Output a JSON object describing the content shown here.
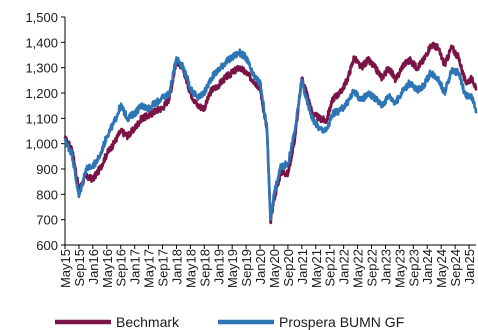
{
  "chart_data": {
    "type": "line",
    "title": "",
    "xlabel": "",
    "ylabel": "",
    "ylim": [
      600,
      1500
    ],
    "yticks": [
      "600",
      "700",
      "800",
      "900",
      "1,000",
      "1,100",
      "1,200",
      "1,300",
      "1,400",
      "1,500"
    ],
    "x_range": [
      "2015-05",
      "2025-03"
    ],
    "xticks": [
      "May15",
      "Sep15",
      "Jan16",
      "May16",
      "Sep16",
      "Jan17",
      "May17",
      "Sep17",
      "Jan18",
      "May18",
      "Sep18",
      "Jan19",
      "May19",
      "Sep19",
      "Jan20",
      "May20",
      "Sep20",
      "Jan21",
      "May21",
      "Sep21",
      "Jan22",
      "May22",
      "Sep22",
      "Jan23",
      "May23",
      "Sep23",
      "Jan24",
      "May24",
      "Sep24",
      "Jan25"
    ],
    "grid": false,
    "legend_position": "bottom",
    "series": [
      {
        "name": "Bechmark",
        "color": "#7b1446",
        "points": [
          [
            "2015-05",
            1020
          ],
          [
            "2015-07",
            980
          ],
          [
            "2015-09",
            820
          ],
          [
            "2015-11",
            870
          ],
          [
            "2016-01",
            860
          ],
          [
            "2016-03",
            900
          ],
          [
            "2016-05",
            960
          ],
          [
            "2016-07",
            1000
          ],
          [
            "2016-09",
            1050
          ],
          [
            "2016-11",
            1030
          ],
          [
            "2017-01",
            1060
          ],
          [
            "2017-03",
            1100
          ],
          [
            "2017-05",
            1110
          ],
          [
            "2017-07",
            1130
          ],
          [
            "2017-09",
            1140
          ],
          [
            "2017-11",
            1180
          ],
          [
            "2018-01",
            1330
          ],
          [
            "2018-03",
            1290
          ],
          [
            "2018-05",
            1200
          ],
          [
            "2018-07",
            1150
          ],
          [
            "2018-09",
            1140
          ],
          [
            "2018-11",
            1210
          ],
          [
            "2019-01",
            1230
          ],
          [
            "2019-03",
            1260
          ],
          [
            "2019-05",
            1280
          ],
          [
            "2019-07",
            1300
          ],
          [
            "2019-09",
            1280
          ],
          [
            "2019-11",
            1250
          ],
          [
            "2020-01",
            1220
          ],
          [
            "2020-03",
            1050
          ],
          [
            "2020-04",
            690
          ],
          [
            "2020-05",
            780
          ],
          [
            "2020-07",
            890
          ],
          [
            "2020-09",
            880
          ],
          [
            "2020-11",
            1020
          ],
          [
            "2021-01",
            1260
          ],
          [
            "2021-02",
            1220
          ],
          [
            "2021-04",
            1120
          ],
          [
            "2021-06",
            1100
          ],
          [
            "2021-08",
            1090
          ],
          [
            "2021-10",
            1180
          ],
          [
            "2021-12",
            1200
          ],
          [
            "2022-02",
            1250
          ],
          [
            "2022-04",
            1340
          ],
          [
            "2022-06",
            1300
          ],
          [
            "2022-08",
            1330
          ],
          [
            "2022-10",
            1300
          ],
          [
            "2022-12",
            1260
          ],
          [
            "2023-02",
            1300
          ],
          [
            "2023-04",
            1250
          ],
          [
            "2023-06",
            1310
          ],
          [
            "2023-08",
            1330
          ],
          [
            "2023-10",
            1300
          ],
          [
            "2023-12",
            1330
          ],
          [
            "2024-02",
            1390
          ],
          [
            "2024-04",
            1380
          ],
          [
            "2024-06",
            1310
          ],
          [
            "2024-08",
            1380
          ],
          [
            "2024-10",
            1340
          ],
          [
            "2024-12",
            1240
          ],
          [
            "2025-02",
            1260
          ],
          [
            "2025-03",
            1210
          ]
        ]
      },
      {
        "name": "Prospera BUMN GF",
        "color": "#2e75b6",
        "points": [
          [
            "2015-05",
            1010
          ],
          [
            "2015-07",
            960
          ],
          [
            "2015-09",
            790
          ],
          [
            "2015-11",
            900
          ],
          [
            "2016-01",
            910
          ],
          [
            "2016-03",
            950
          ],
          [
            "2016-05",
            1030
          ],
          [
            "2016-07",
            1080
          ],
          [
            "2016-09",
            1150
          ],
          [
            "2016-11",
            1100
          ],
          [
            "2017-01",
            1120
          ],
          [
            "2017-03",
            1150
          ],
          [
            "2017-05",
            1140
          ],
          [
            "2017-07",
            1160
          ],
          [
            "2017-09",
            1180
          ],
          [
            "2017-11",
            1200
          ],
          [
            "2018-01",
            1340
          ],
          [
            "2018-03",
            1300
          ],
          [
            "2018-05",
            1220
          ],
          [
            "2018-07",
            1180
          ],
          [
            "2018-09",
            1200
          ],
          [
            "2018-11",
            1260
          ],
          [
            "2019-01",
            1290
          ],
          [
            "2019-03",
            1320
          ],
          [
            "2019-05",
            1340
          ],
          [
            "2019-07",
            1360
          ],
          [
            "2019-09",
            1340
          ],
          [
            "2019-11",
            1270
          ],
          [
            "2020-01",
            1240
          ],
          [
            "2020-03",
            1060
          ],
          [
            "2020-04",
            700
          ],
          [
            "2020-05",
            800
          ],
          [
            "2020-07",
            910
          ],
          [
            "2020-09",
            920
          ],
          [
            "2020-11",
            1050
          ],
          [
            "2021-01",
            1250
          ],
          [
            "2021-02",
            1190
          ],
          [
            "2021-04",
            1100
          ],
          [
            "2021-06",
            1060
          ],
          [
            "2021-08",
            1050
          ],
          [
            "2021-10",
            1120
          ],
          [
            "2021-12",
            1130
          ],
          [
            "2022-02",
            1160
          ],
          [
            "2022-04",
            1210
          ],
          [
            "2022-06",
            1170
          ],
          [
            "2022-08",
            1200
          ],
          [
            "2022-10",
            1180
          ],
          [
            "2022-12",
            1150
          ],
          [
            "2023-02",
            1190
          ],
          [
            "2023-04",
            1160
          ],
          [
            "2023-06",
            1210
          ],
          [
            "2023-08",
            1240
          ],
          [
            "2023-10",
            1210
          ],
          [
            "2023-12",
            1230
          ],
          [
            "2024-02",
            1280
          ],
          [
            "2024-04",
            1260
          ],
          [
            "2024-06",
            1200
          ],
          [
            "2024-08",
            1290
          ],
          [
            "2024-10",
            1280
          ],
          [
            "2024-12",
            1190
          ],
          [
            "2025-02",
            1180
          ],
          [
            "2025-03",
            1120
          ]
        ]
      }
    ]
  }
}
